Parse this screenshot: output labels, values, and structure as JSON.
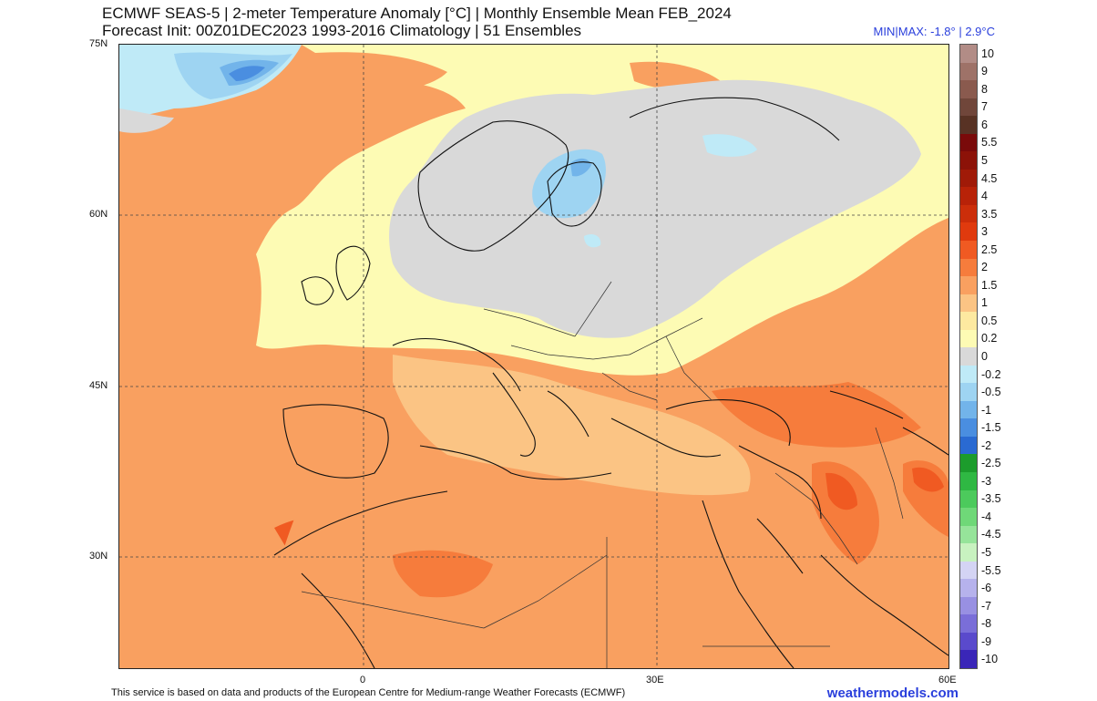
{
  "header": {
    "title_line1": "ECMWF SEAS-5 | 2-meter Temperature Anomaly [°C] | Monthly Ensemble Mean FEB_2024",
    "title_line2": "Forecast Init: 00Z01DEC2023     1993-2016 Climatology | 51 Ensembles",
    "minmax": "MIN|MAX: -1.8° | 2.9°C"
  },
  "axes": {
    "lat_labels": [
      "75N",
      "60N",
      "45N",
      "30N"
    ],
    "lon_labels": [
      "0",
      "30E",
      "60E"
    ]
  },
  "footer": {
    "credit": "This service is based on data and products of the European Centre for Medium-range Weather Forecasts (ECMWF)",
    "brand": "weathermodels.com"
  },
  "colorbar": {
    "labels": [
      "10",
      "9",
      "8",
      "7",
      "6",
      "5.5",
      "5",
      "4.5",
      "4",
      "3.5",
      "3",
      "2.5",
      "2",
      "1.5",
      "1",
      "0.5",
      "0.2",
      "0",
      "-0.2",
      "-0.5",
      "-1",
      "-1.5",
      "-2",
      "-2.5",
      "-3",
      "-3.5",
      "-4",
      "-4.5",
      "-5",
      "-5.5",
      "-6",
      "-7",
      "-8",
      "-9",
      "-10"
    ],
    "colors": [
      "#b28c86",
      "#9e7268",
      "#8a5a4e",
      "#70463a",
      "#583224",
      "#7a0a0a",
      "#8c1208",
      "#a01a08",
      "#b82208",
      "#cc2e0a",
      "#e03a0e",
      "#f05a22",
      "#f67c3c",
      "#f9a060",
      "#fbc484",
      "#fde9a0",
      "#fdfbb4",
      "#d9d9d9",
      "#bfeaf7",
      "#9ed4f2",
      "#72b4ea",
      "#4a8ee0",
      "#2a6ad2",
      "#1c9c2c",
      "#2fb843",
      "#4cca5c",
      "#6fd878",
      "#96e49a",
      "#c8f2c0",
      "#d4d4f4",
      "#b6b2ec",
      "#9890e2",
      "#7a6ed8",
      "#5a4acc",
      "#3a26b8"
    ]
  }
}
